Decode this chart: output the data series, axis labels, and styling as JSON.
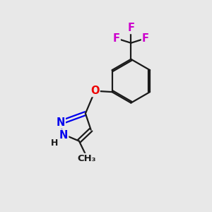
{
  "fig_bg": "#e8e8e8",
  "bond_color": "#1a1a1a",
  "atom_colors": {
    "N": "#0000ee",
    "O": "#ee0000",
    "F": "#cc00cc",
    "C": "#1a1a1a",
    "H": "#1a1a1a"
  },
  "font_size": 10.5,
  "lw": 1.6,
  "dbo": 0.085
}
